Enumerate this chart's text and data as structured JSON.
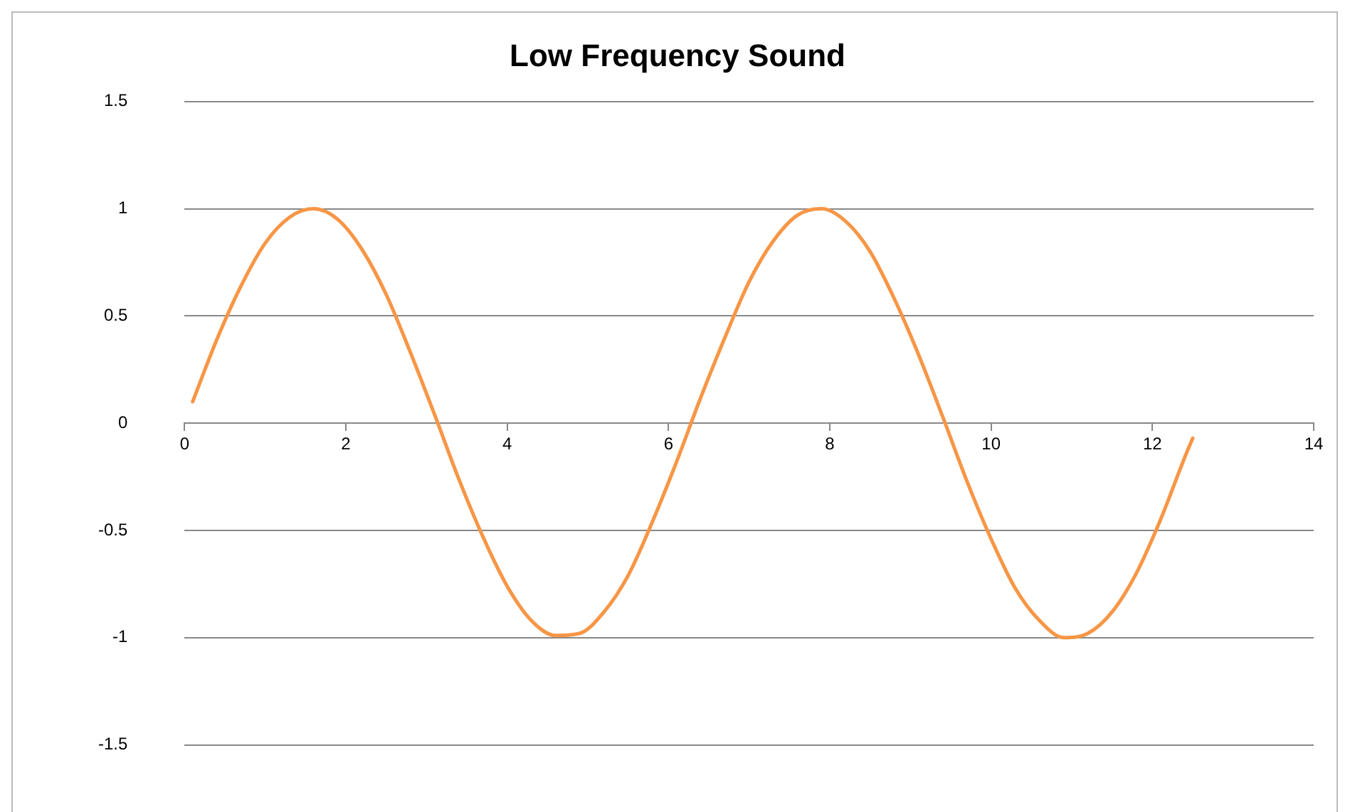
{
  "chart_data": {
    "type": "line",
    "title": "Low Frequency Sound",
    "x": [
      0.1,
      0.4,
      0.7,
      1.0,
      1.3,
      1.6,
      1.9,
      2.2,
      2.5,
      2.8,
      3.1,
      3.4,
      3.7,
      4.0,
      4.3,
      4.6,
      4.9,
      5.2,
      5.5,
      5.8,
      6.1,
      6.4,
      6.7,
      7.0,
      7.3,
      7.6,
      7.9,
      8.2,
      8.5,
      8.8,
      9.1,
      9.4,
      9.7,
      10.0,
      10.3,
      10.6,
      10.9,
      11.2,
      11.5,
      11.8,
      12.1,
      12.4,
      12.5
    ],
    "series": [
      {
        "color": "#f79646",
        "values": [
          0.1,
          0.39,
          0.64,
          0.84,
          0.96,
          1.0,
          0.95,
          0.81,
          0.6,
          0.33,
          0.04,
          -0.26,
          -0.53,
          -0.76,
          -0.92,
          -0.99,
          -0.98,
          -0.88,
          -0.71,
          -0.46,
          -0.18,
          0.12,
          0.4,
          0.66,
          0.85,
          0.97,
          1.0,
          0.94,
          0.8,
          0.58,
          0.32,
          0.03,
          -0.27,
          -0.54,
          -0.77,
          -0.92,
          -1.0,
          -0.98,
          -0.88,
          -0.7,
          -0.45,
          -0.16,
          -0.07
        ]
      }
    ],
    "xlim": [
      0,
      14
    ],
    "xticks": [
      0,
      2,
      4,
      6,
      8,
      10,
      12,
      14
    ],
    "ylim": [
      -1.5,
      1.5
    ],
    "yticks": [
      -1.5,
      -1,
      -0.5,
      0,
      0.5,
      1,
      1.5
    ],
    "grid": "y",
    "legend": false,
    "marker": "none",
    "line_style": "solid"
  }
}
